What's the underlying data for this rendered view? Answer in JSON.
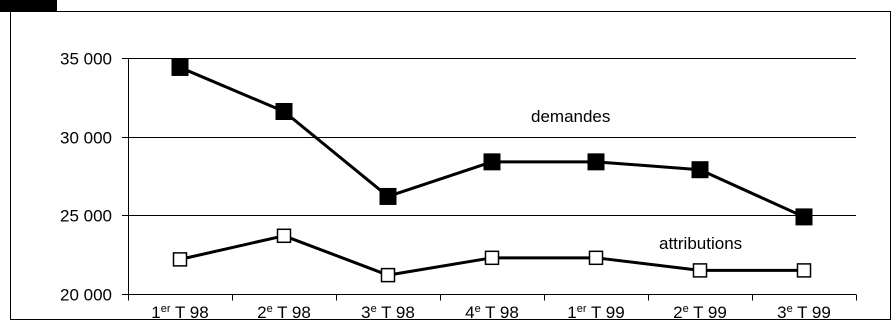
{
  "chart_data": {
    "type": "line",
    "categories": [
      {
        "prefix": "1",
        "sup": "er",
        "suffix": " T 98"
      },
      {
        "prefix": "2",
        "sup": "e",
        "suffix": " T 98"
      },
      {
        "prefix": "3",
        "sup": "e",
        "suffix": " T 98"
      },
      {
        "prefix": "4",
        "sup": "e",
        "suffix": " T 98"
      },
      {
        "prefix": "1",
        "sup": "er",
        "suffix": " T 99"
      },
      {
        "prefix": "2",
        "sup": "e",
        "suffix": " T 99"
      },
      {
        "prefix": "3",
        "sup": "e",
        "suffix": " T 99"
      }
    ],
    "series": [
      {
        "name": "demandes",
        "marker": "filled-square",
        "values": [
          34400,
          31600,
          26200,
          28400,
          28400,
          27900,
          24900
        ]
      },
      {
        "name": "attributions",
        "marker": "hollow-square",
        "values": [
          22200,
          23700,
          21200,
          22300,
          22300,
          21500,
          21500
        ]
      }
    ],
    "ylim": [
      20000,
      35000
    ],
    "yticks": [
      {
        "value": 35000,
        "label": "35 000"
      },
      {
        "value": 30000,
        "label": "30 000"
      },
      {
        "value": 25000,
        "label": "25 000"
      },
      {
        "value": 20000,
        "label": "20 000"
      }
    ],
    "grid": "horizontal",
    "colors": {
      "line": "#000000",
      "grid": "#000000",
      "background": "#ffffff"
    }
  }
}
